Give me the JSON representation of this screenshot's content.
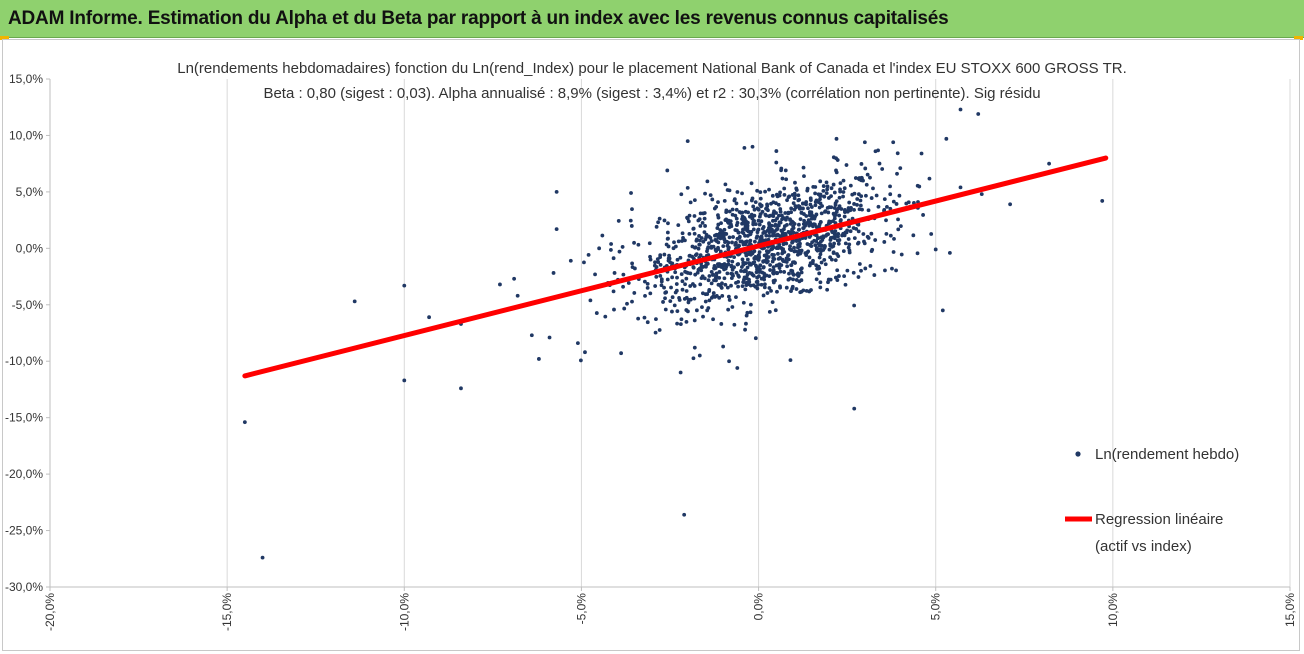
{
  "banner": {
    "title": "ADAM Informe. Estimation du Alpha et du Beta par rapport à un index avec les revenus connus capitalisés"
  },
  "colors": {
    "banner_bg": "#8fd16e",
    "corner_marker": "#f0b400",
    "points": "#203864",
    "regression": "#ff0000",
    "grid": "#d9d9d9"
  },
  "chart_data": {
    "type": "scatter",
    "title_line1": "Ln(rendements hebdomadaires) fonction du Ln(rend_Index) pour le placement National Bank of Canada et l'index EU STOXX 600 GROSS TR.",
    "title_line2": "Beta : 0,80 (sigest : 0,03). Alpha annualisé : 8,9% (sigest : 3,4%) et r2 : 30,3% (corrélation non pertinente). Sig résidu",
    "xlim": [
      -0.2,
      0.15
    ],
    "ylim": [
      -0.3,
      0.15
    ],
    "x_ticks": [
      -0.2,
      -0.15,
      -0.1,
      -0.05,
      0.0,
      0.05,
      0.1,
      0.15
    ],
    "x_tick_labels": [
      "-20,0%",
      "-15,0%",
      "-10,0%",
      "-5,0%",
      "0,0%",
      "5,0%",
      "10,0%",
      "15,0%"
    ],
    "y_ticks": [
      0.15,
      0.1,
      0.05,
      0.0,
      -0.05,
      -0.1,
      -0.15,
      -0.2,
      -0.25,
      -0.3
    ],
    "y_tick_labels": [
      "15,0%",
      "10,0%",
      "5,0%",
      "0,0%",
      "-5,0%",
      "-10,0%",
      "-15,0%",
      "-20,0%",
      "-25,0%",
      "-30,0%"
    ],
    "grid": "vertical",
    "legend": {
      "position": "right",
      "scatter_label": "Ln(rendement hebdo)",
      "line_label_1": "Regression linéaire",
      "line_label_2": "(actif vs index)"
    },
    "regression": {
      "beta": 0.8,
      "x_start": -0.145,
      "y_start": -0.113,
      "x_end": 0.098,
      "y_end": 0.08
    },
    "outliers": [
      [
        -0.145,
        -0.154
      ],
      [
        -0.14,
        -0.274
      ],
      [
        -0.114,
        -0.047
      ],
      [
        -0.1,
        -0.033
      ],
      [
        -0.1,
        -0.117
      ],
      [
        -0.093,
        -0.061
      ],
      [
        -0.084,
        -0.067
      ],
      [
        -0.084,
        -0.124
      ],
      [
        -0.057,
        0.05
      ],
      [
        -0.057,
        0.017
      ],
      [
        -0.064,
        -0.077
      ],
      [
        -0.062,
        -0.098
      ],
      [
        -0.059,
        -0.079
      ],
      [
        -0.051,
        -0.084
      ],
      [
        -0.049,
        -0.092
      ],
      [
        -0.036,
        0.049
      ],
      [
        -0.02,
        0.095
      ],
      [
        -0.022,
        -0.11
      ],
      [
        -0.018,
        -0.088
      ],
      [
        -0.021,
        -0.236
      ],
      [
        -0.01,
        -0.087
      ],
      [
        -0.006,
        -0.106
      ],
      [
        0.009,
        -0.099
      ],
      [
        0.027,
        -0.142
      ],
      [
        0.022,
        0.097
      ],
      [
        0.03,
        0.094
      ],
      [
        0.038,
        0.094
      ],
      [
        0.046,
        0.084
      ],
      [
        0.053,
        0.097
      ],
      [
        0.057,
        0.123
      ],
      [
        0.062,
        0.119
      ],
      [
        0.057,
        0.054
      ],
      [
        0.063,
        0.048
      ],
      [
        0.071,
        0.039
      ],
      [
        0.078,
        0.064
      ],
      [
        0.082,
        0.075
      ],
      [
        0.097,
        0.042
      ],
      [
        0.052,
        -0.055
      ],
      [
        0.054,
        -0.004
      ],
      [
        0.05,
        -0.001
      ],
      [
        -0.073,
        -0.032
      ],
      [
        -0.069,
        -0.027
      ],
      [
        -0.053,
        -0.011
      ],
      [
        -0.045,
        0.0
      ],
      [
        -0.068,
        -0.042
      ],
      [
        0.04,
        0.071
      ],
      [
        0.045,
        0.041
      ],
      [
        0.033,
        0.086
      ],
      [
        -0.004,
        0.089
      ],
      [
        0.005,
        0.076
      ]
    ],
    "cloud": {
      "count": 1300,
      "x_mean": 0.002,
      "x_sd": 0.018,
      "beta": 0.8,
      "alpha": 0.0017,
      "resid_sd": 0.025
    }
  }
}
